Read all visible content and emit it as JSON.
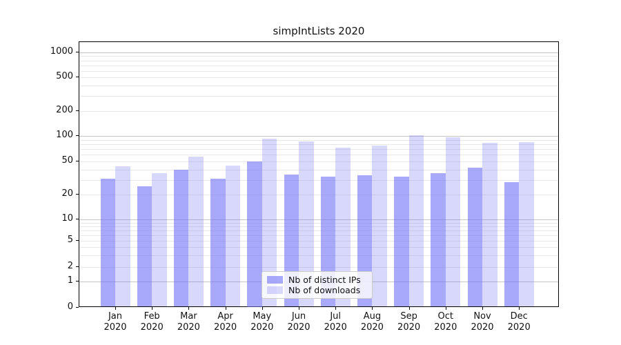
{
  "title": "simpIntLists 2020",
  "chart_data": {
    "type": "bar",
    "title": "simpIntLists 2020",
    "months": [
      "Jan",
      "Feb",
      "Mar",
      "Apr",
      "May",
      "Jun",
      "Jul",
      "Aug",
      "Sep",
      "Oct",
      "Nov",
      "Dec"
    ],
    "x_tick_year": "2020",
    "series": [
      {
        "name": "Nb of distinct IPs",
        "color": "rgba(112,112,248,0.6)",
        "values": [
          31,
          25,
          40,
          31,
          50,
          35,
          33,
          34,
          33,
          36,
          42,
          28
        ]
      },
      {
        "name": "Nb of downloads",
        "color": "rgba(112,112,248,0.27)",
        "values": [
          44,
          36,
          57,
          45,
          93,
          86,
          73,
          77,
          102,
          97,
          83,
          85
        ]
      }
    ],
    "y_ticks": [
      0,
      1,
      2,
      5,
      10,
      20,
      50,
      100,
      200,
      500,
      1000
    ],
    "yscale": "symlog",
    "ylim": [
      0,
      1300
    ],
    "grid": true,
    "legend_position": "lower center"
  },
  "colors": {
    "bar_distinct_ips": "rgba(112,112,248,0.6)",
    "bar_downloads": "rgba(112,112,248,0.27)",
    "grid_major": "#c4c4c4",
    "grid_minor": "#e8e8e8",
    "spine": "#000000",
    "background": "#ffffff"
  }
}
